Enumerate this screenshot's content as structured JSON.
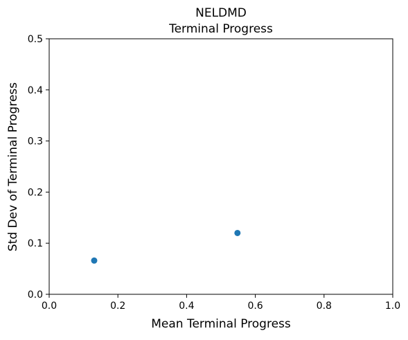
{
  "chart_data": {
    "type": "scatter",
    "title": "NELDMD",
    "subtitle": "Terminal Progress",
    "xlabel": "Mean Terminal Progress",
    "ylabel": "Std Dev of Terminal Progress",
    "xlim": [
      0.0,
      1.0
    ],
    "ylim": [
      0.0,
      0.5
    ],
    "xticks": [
      0.0,
      0.2,
      0.4,
      0.6,
      0.8,
      1.0
    ],
    "xtick_labels": [
      "0.0",
      "0.2",
      "0.4",
      "0.6",
      "0.8",
      "1.0"
    ],
    "yticks": [
      0.0,
      0.1,
      0.2,
      0.3,
      0.4,
      0.5
    ],
    "ytick_labels": [
      "0.0",
      "0.1",
      "0.2",
      "0.3",
      "0.4",
      "0.5"
    ],
    "grid": false,
    "legend": "none",
    "series": [
      {
        "color": "#1f77b4",
        "points": [
          {
            "x": 0.131,
            "y": 0.066
          },
          {
            "x": 0.548,
            "y": 0.12
          }
        ]
      }
    ]
  }
}
